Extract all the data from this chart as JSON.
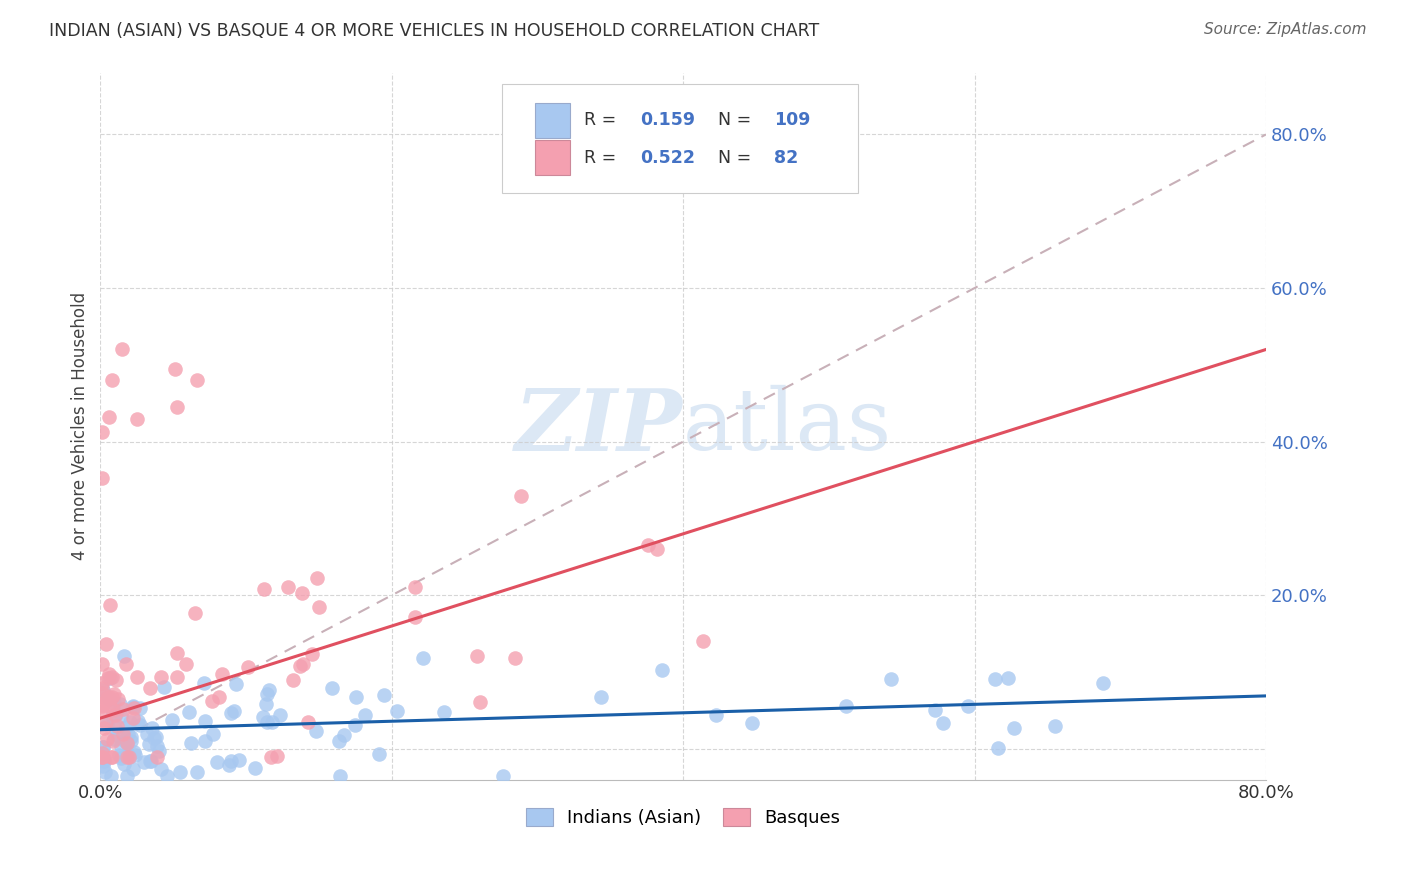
{
  "title": "INDIAN (ASIAN) VS BASQUE 4 OR MORE VEHICLES IN HOUSEHOLD CORRELATION CHART",
  "source": "Source: ZipAtlas.com",
  "ylabel": "4 or more Vehicles in Household",
  "xlim": [
    0.0,
    0.8
  ],
  "ylim": [
    -0.04,
    0.88
  ],
  "ytick_vals": [
    0.0,
    0.2,
    0.4,
    0.6,
    0.8
  ],
  "ytick_labels": [
    "",
    "20.0%",
    "40.0%",
    "60.0%",
    "80.0%"
  ],
  "xtick_vals": [
    0.0,
    0.8
  ],
  "xtick_labels": [
    "0.0%",
    "80.0%"
  ],
  "legend_r_indian": "0.159",
  "legend_n_indian": "109",
  "legend_r_basque": "0.522",
  "legend_n_basque": "82",
  "indian_color": "#a8c8f0",
  "indian_edge_color": "#6699cc",
  "basque_color": "#f4a0b0",
  "basque_edge_color": "#cc6677",
  "indian_line_color": "#1a5fa8",
  "basque_line_color": "#e05060",
  "diagonal_color": "#c8b0b8",
  "watermark_zip": "ZIP",
  "watermark_atlas": "atlas",
  "watermark_color": "#dce8f5",
  "background_color": "#ffffff",
  "grid_color": "#cccccc",
  "title_color": "#333333",
  "source_color": "#666666",
  "ytick_color": "#4472c4",
  "legend_text_color": "#333333",
  "legend_value_color": "#4472c4",
  "indian_slope": 0.055,
  "indian_intercept": 0.025,
  "basque_slope": 0.6,
  "basque_intercept": 0.04
}
